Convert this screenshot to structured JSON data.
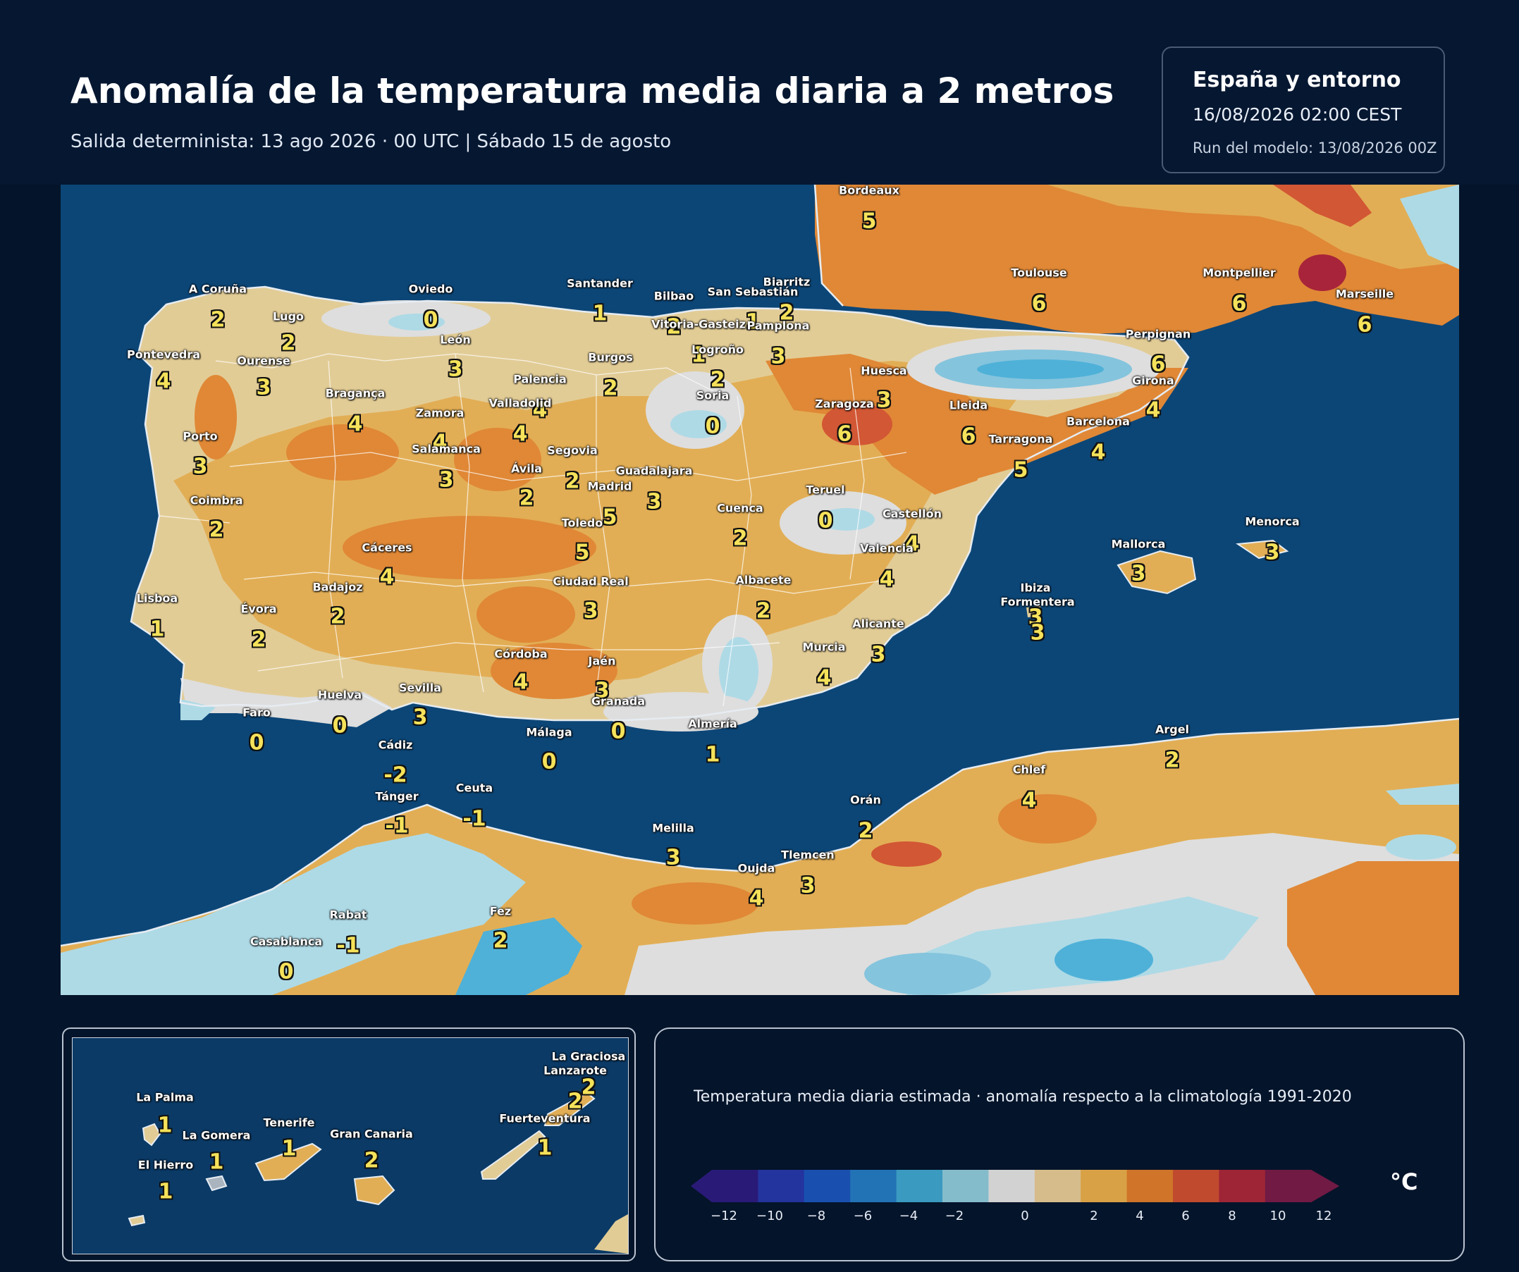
{
  "header": {
    "title": "Anomalía de la temperatura media diaria a 2 metros",
    "subtitle": "Salida determinista: 13 ago 2026 · 00 UTC  |  Sábado 15 de agosto"
  },
  "info": {
    "region": "España y entorno",
    "valid_time": "16/08/2026  02:00 CEST",
    "run": "Run del modelo: 13/08/2026 00Z"
  },
  "cities": [
    {
      "name": "Bordeaux",
      "value": "5"
    },
    {
      "name": "A Coruña",
      "value": "2"
    },
    {
      "name": "Lugo",
      "value": "2"
    },
    {
      "name": "Oviedo",
      "value": "0"
    },
    {
      "name": "Santander",
      "value": "1"
    },
    {
      "name": "Bilbao",
      "value": "2"
    },
    {
      "name": "Biarritz",
      "value": "2"
    },
    {
      "name": "San Sebastián",
      "value": "1"
    },
    {
      "name": "Vitoria-Gasteiz",
      "value": "1"
    },
    {
      "name": "Pamplona",
      "value": "3"
    },
    {
      "name": "Toulouse",
      "value": "6"
    },
    {
      "name": "Montpellier",
      "value": "6"
    },
    {
      "name": "Marseille",
      "value": "6"
    },
    {
      "name": "Perpignan",
      "value": "6"
    },
    {
      "name": "Pontevedra",
      "value": "4"
    },
    {
      "name": "Ourense",
      "value": "3"
    },
    {
      "name": "León",
      "value": "3"
    },
    {
      "name": "Burgos",
      "value": "2"
    },
    {
      "name": "Logroño",
      "value": "2"
    },
    {
      "name": "Palencia",
      "value": "4"
    },
    {
      "name": "Huesca",
      "value": "3"
    },
    {
      "name": "Girona",
      "value": "4"
    },
    {
      "name": "Bragança",
      "value": "4"
    },
    {
      "name": "Valladolid",
      "value": "4"
    },
    {
      "name": "Soria",
      "value": "0"
    },
    {
      "name": "Zaragoza",
      "value": "6"
    },
    {
      "name": "Lleida",
      "value": "6"
    },
    {
      "name": "Barcelona",
      "value": "4"
    },
    {
      "name": "Zamora",
      "value": "4"
    },
    {
      "name": "Porto",
      "value": "3"
    },
    {
      "name": "Salamanca",
      "value": "3"
    },
    {
      "name": "Segovia",
      "value": "2"
    },
    {
      "name": "Tarragona",
      "value": "5"
    },
    {
      "name": "Ávila",
      "value": "2"
    },
    {
      "name": "Guadalajara",
      "value": "3"
    },
    {
      "name": "Madrid",
      "value": "5"
    },
    {
      "name": "Teruel",
      "value": "0"
    },
    {
      "name": "Coimbra",
      "value": "2"
    },
    {
      "name": "Cuenca",
      "value": "2"
    },
    {
      "name": "Toledo",
      "value": "5"
    },
    {
      "name": "Castellón",
      "value": "4"
    },
    {
      "name": "Menorca",
      "value": "3"
    },
    {
      "name": "Mallorca",
      "value": "3"
    },
    {
      "name": "Cáceres",
      "value": "4"
    },
    {
      "name": "Valencia",
      "value": "4"
    },
    {
      "name": "Ciudad Real",
      "value": "3"
    },
    {
      "name": "Albacete",
      "value": "2"
    },
    {
      "name": "Ibiza",
      "value": "3"
    },
    {
      "name": "Formentera",
      "value": "3"
    },
    {
      "name": "Badajoz",
      "value": "2"
    },
    {
      "name": "Lisboa",
      "value": "1"
    },
    {
      "name": "Évora",
      "value": "2"
    },
    {
      "name": "Alicante",
      "value": "3"
    },
    {
      "name": "Murcia",
      "value": "4"
    },
    {
      "name": "Córdoba",
      "value": "4"
    },
    {
      "name": "Jaén",
      "value": "3"
    },
    {
      "name": "Huelva",
      "value": "0"
    },
    {
      "name": "Sevilla",
      "value": "3"
    },
    {
      "name": "Granada",
      "value": "0"
    },
    {
      "name": "Faro",
      "value": "0"
    },
    {
      "name": "Almería",
      "value": "1"
    },
    {
      "name": "Málaga",
      "value": "0"
    },
    {
      "name": "Argel",
      "value": "2"
    },
    {
      "name": "Cádiz",
      "value": "-2"
    },
    {
      "name": "Chlef",
      "value": "4"
    },
    {
      "name": "Ceuta",
      "value": "-1"
    },
    {
      "name": "Tánger",
      "value": "-1"
    },
    {
      "name": "Orán",
      "value": "2"
    },
    {
      "name": "Melilla",
      "value": "3"
    },
    {
      "name": "Tlemcen",
      "value": "3"
    },
    {
      "name": "Oujda",
      "value": "4"
    },
    {
      "name": "Rabat",
      "value": "-1"
    },
    {
      "name": "Fez",
      "value": "2"
    },
    {
      "name": "Casablanca",
      "value": "0"
    }
  ],
  "canarias": [
    {
      "name": "La Graciosa",
      "value": "2"
    },
    {
      "name": "Lanzarote",
      "value": "2"
    },
    {
      "name": "La Palma",
      "value": "1"
    },
    {
      "name": "Tenerife",
      "value": "1"
    },
    {
      "name": "Fuerteventura",
      "value": "1"
    },
    {
      "name": "La Gomera",
      "value": "1"
    },
    {
      "name": "Gran Canaria",
      "value": "2"
    },
    {
      "name": "El Hierro",
      "value": "1"
    }
  ],
  "legend": {
    "caption": "Temperatura media diaria estimada · anomalía respecto a la climatología 1991-2020",
    "unit": "°C",
    "ticks": [
      "−12",
      "−10",
      "−8",
      "−6",
      "−4",
      "−2",
      "0",
      "2",
      "4",
      "6",
      "8",
      "10",
      "12"
    ],
    "colors": [
      "#2a1a78",
      "#23349e",
      "#1950b0",
      "#2272b6",
      "#3a9ac0",
      "#85bccb",
      "#d2d2d2",
      "#d6bc8a",
      "#d9a145",
      "#cf7428",
      "#c04a2e",
      "#9e2535",
      "#701a44"
    ]
  },
  "map_colors": {
    "sea": "#0c4677",
    "land_light": "#e2cc96",
    "land_mid": "#e2ae55",
    "land_warm": "#e08836",
    "land_hot": "#d25734",
    "cold": "#aedae6",
    "cold_deep": "#4fb1d8",
    "neutral": "#dedede"
  }
}
